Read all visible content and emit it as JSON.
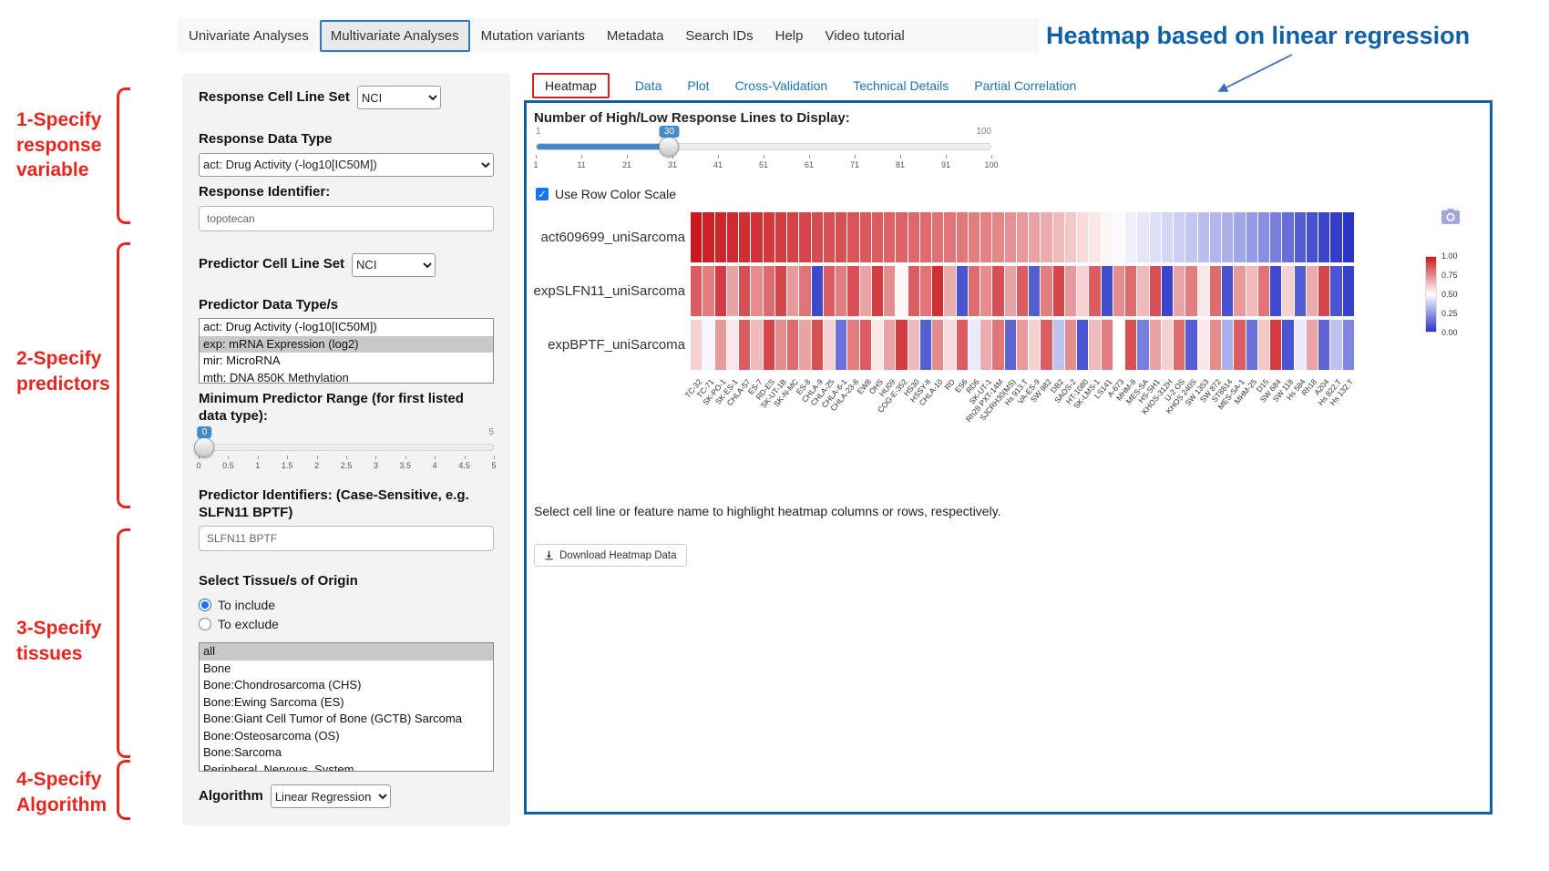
{
  "nav": {
    "tabs": [
      {
        "label": "Univariate Analyses",
        "active": false
      },
      {
        "label": "Multivariate Analyses",
        "active": true
      },
      {
        "label": "Mutation variants",
        "active": false
      },
      {
        "label": "Metadata",
        "active": false
      },
      {
        "label": "Search IDs",
        "active": false
      },
      {
        "label": "Help",
        "active": false
      },
      {
        "label": "Video tutorial",
        "active": false
      }
    ]
  },
  "annotations": {
    "heading": "Heatmap based on linear regression",
    "steps": [
      {
        "label": "1-Specify response variable"
      },
      {
        "label": "2-Specify predictors"
      },
      {
        "label": "3-Specify tissues"
      },
      {
        "label": "4-Specify Algorithm"
      }
    ],
    "accent_red": "#e8251f",
    "accent_blue": "#1060a8"
  },
  "sidebar": {
    "response_cell_line_set": {
      "label": "Response Cell Line Set",
      "value": "NCI"
    },
    "response_data_type": {
      "label": "Response Data Type",
      "value": "act: Drug Activity (-log10[IC50M])"
    },
    "response_identifier": {
      "label": "Response Identifier:",
      "value": "topotecan"
    },
    "predictor_cell_line_set": {
      "label": "Predictor Cell Line Set",
      "value": "NCI"
    },
    "predictor_data_types": {
      "label": "Predictor Data Type/s",
      "options": [
        "act: Drug Activity (-log10[IC50M])",
        "exp: mRNA Expression (log2)",
        "mir: MicroRNA",
        "mth: DNA 850K Methylation"
      ],
      "selected": "exp: mRNA Expression (log2)"
    },
    "min_predictor_range": {
      "label": "Minimum Predictor Range (for first listed data type):",
      "value": "0",
      "max": "5",
      "ticks": [
        "0",
        "0.5",
        "1",
        "1.5",
        "2",
        "2.5",
        "3",
        "3.5",
        "4",
        "4.5",
        "5"
      ]
    },
    "predictor_identifiers": {
      "label": "Predictor Identifiers: (Case-Sensitive, e.g. SLFN11 BPTF)",
      "value": "SLFN11 BPTF"
    },
    "tissues": {
      "label": "Select Tissue/s of Origin",
      "radio_include": "To include",
      "radio_exclude": "To exclude",
      "include_selected": true,
      "options": [
        "all",
        "Bone",
        "Bone:Chondrosarcoma (CHS)",
        "Bone:Ewing Sarcoma (ES)",
        "Bone:Giant Cell Tumor of Bone (GCTB) Sarcoma",
        "Bone:Osteosarcoma (OS)",
        "Bone:Sarcoma",
        "Peripheral_Nervous_System"
      ],
      "selected": "all"
    },
    "algorithm": {
      "label": "Algorithm",
      "value": "Linear Regression"
    }
  },
  "main": {
    "tabs": [
      {
        "label": "Heatmap",
        "active": true
      },
      {
        "label": "Data",
        "active": false
      },
      {
        "label": "Plot",
        "active": false
      },
      {
        "label": "Cross-Validation",
        "active": false
      },
      {
        "label": "Technical Details",
        "active": false
      },
      {
        "label": "Partial Correlation",
        "active": false
      }
    ],
    "slider": {
      "label": "Number of High/Low Response Lines to Display:",
      "min": "1",
      "max": "100",
      "value": "30",
      "ticks": [
        "1",
        "11",
        "21",
        "31",
        "41",
        "51",
        "61",
        "71",
        "81",
        "91",
        "100"
      ]
    },
    "row_color_scale_label": "Use Row Color Scale",
    "row_color_scale_checked": true,
    "note": "Select cell line or feature name to highlight heatmap columns or rows, respectively.",
    "download_button": "Download Heatmap Data"
  },
  "chart_data": {
    "type": "heatmap",
    "rows": [
      "act609699_uniSarcoma",
      "expSLFN11_uniSarcoma",
      "expBPTF_uniSarcoma"
    ],
    "columns": [
      "TC-32",
      "TC-71",
      "SK-PO-1",
      "SK-ES-1",
      "CHLA-57",
      "ES-7",
      "RD-ES",
      "SK-UT-1B",
      "SK-N-MC",
      "ES-8",
      "CHLA-9",
      "CHLA-25",
      "CHLA-6-1",
      "CHLA-23-8",
      "EW8",
      "OHS",
      "HU09",
      "COG-E-352",
      "HS30",
      "HSSY-II",
      "CHLA-10",
      "RD",
      "ES6",
      "RD6",
      "SK-UT-1",
      "Rh28 PXT-14M",
      "SJCRH30(MS)",
      "Hs 913.T",
      "VA-ES-9",
      "SW 982",
      "DB2",
      "SAOS-2",
      "HT-1080",
      "SK-LMS-1",
      "LS141",
      "A-673",
      "MHM-8",
      "MES-SA",
      "HS-SH1",
      "KHOS-312H",
      "U-2 OS",
      "KHOS 240S",
      "SW 1353",
      "SW 872",
      "ST8814",
      "MES-SA-1",
      "MHM-25",
      "D15",
      "SW 684",
      "SW 118",
      "Hs 584",
      "Rh18",
      "A204",
      "Hs 822.T",
      "Hs 132.T"
    ],
    "values": [
      [
        1.0,
        0.98,
        0.97,
        0.96,
        0.95,
        0.94,
        0.93,
        0.92,
        0.91,
        0.9,
        0.89,
        0.88,
        0.88,
        0.87,
        0.86,
        0.85,
        0.84,
        0.84,
        0.83,
        0.82,
        0.81,
        0.8,
        0.79,
        0.78,
        0.77,
        0.76,
        0.74,
        0.72,
        0.7,
        0.68,
        0.65,
        0.62,
        0.58,
        0.55,
        0.52,
        0.49,
        0.46,
        0.44,
        0.42,
        0.4,
        0.38,
        0.36,
        0.34,
        0.32,
        0.3,
        0.28,
        0.25,
        0.22,
        0.18,
        0.14,
        0.1,
        0.07,
        0.04,
        0.02,
        0.0
      ],
      [
        0.85,
        0.78,
        0.92,
        0.7,
        0.88,
        0.75,
        0.82,
        0.9,
        0.72,
        0.8,
        0.05,
        0.85,
        0.78,
        0.88,
        0.7,
        0.92,
        0.75,
        0.52,
        0.85,
        0.8,
        0.95,
        0.68,
        0.08,
        0.82,
        0.75,
        0.88,
        0.7,
        0.85,
        0.1,
        0.78,
        0.9,
        0.72,
        0.6,
        0.85,
        0.06,
        0.75,
        0.82,
        0.65,
        0.88,
        0.04,
        0.7,
        0.78,
        0.55,
        0.82,
        0.07,
        0.72,
        0.65,
        0.8,
        0.05,
        0.6,
        0.1,
        0.68,
        0.9,
        0.08,
        0.03
      ],
      [
        0.6,
        0.48,
        0.72,
        0.55,
        0.85,
        0.65,
        0.9,
        0.75,
        0.82,
        0.7,
        0.88,
        0.6,
        0.15,
        0.78,
        0.85,
        0.55,
        0.7,
        0.92,
        0.65,
        0.1,
        0.75,
        0.58,
        0.85,
        0.45,
        0.68,
        0.8,
        0.12,
        0.72,
        0.6,
        0.85,
        0.35,
        0.75,
        0.08,
        0.65,
        0.78,
        0.5,
        0.88,
        0.18,
        0.7,
        0.6,
        0.82,
        0.1,
        0.55,
        0.75,
        0.3,
        0.85,
        0.15,
        0.62,
        0.92,
        0.08,
        0.45,
        0.7,
        0.12,
        0.35,
        0.2
      ]
    ],
    "value_range": [
      0,
      1
    ],
    "colorbar_ticks": [
      "1.00",
      "0.75",
      "0.50",
      "0.25",
      "0.00"
    ],
    "color_high": "#cb181d",
    "color_mid": "#ffffff",
    "color_low": "#2a35c8",
    "legend_position": "right",
    "grid": false
  }
}
